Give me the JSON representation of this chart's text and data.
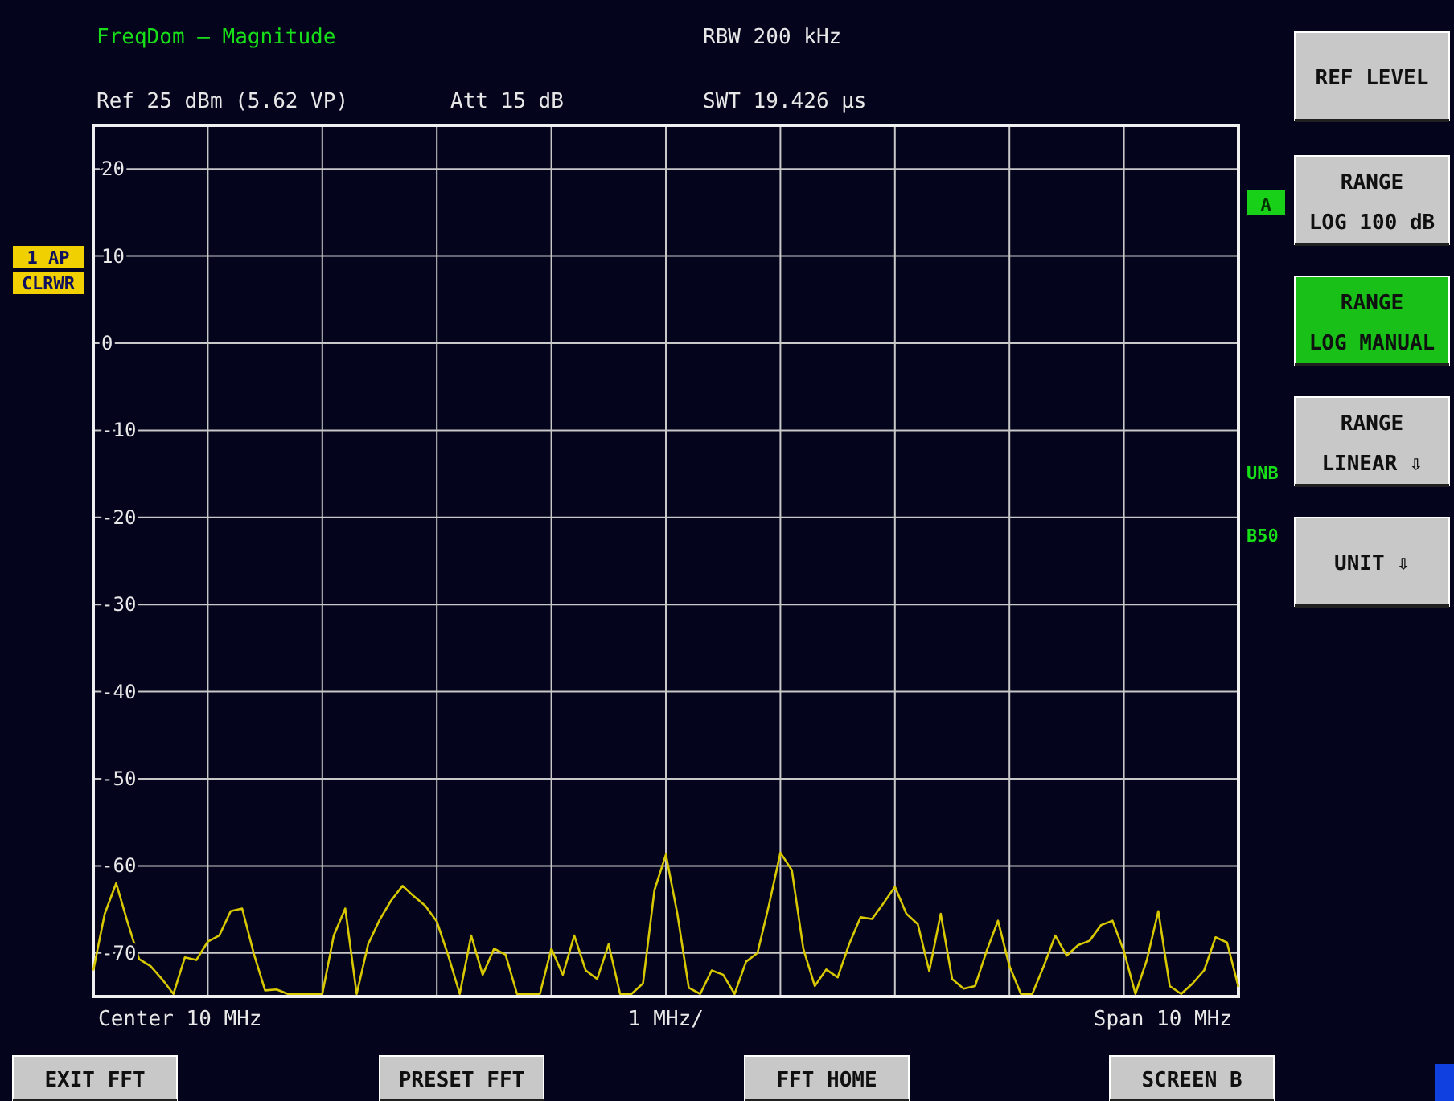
{
  "chart_data": {
    "type": "line",
    "title": "FreqDom – Magnitude",
    "categories": [
      null,
      null,
      null,
      null,
      null,
      null,
      null,
      null,
      null,
      null,
      null,
      null,
      null,
      null,
      null,
      null,
      null,
      null,
      null,
      null,
      null,
      null,
      null,
      null,
      null,
      null,
      null,
      null,
      null,
      null,
      null,
      null,
      null,
      null,
      null,
      null,
      null,
      null,
      null,
      null,
      null,
      null,
      null,
      null,
      null,
      null,
      null,
      null,
      null,
      null,
      null,
      null,
      null,
      null,
      null,
      null,
      null,
      null,
      null,
      null,
      null,
      null,
      null,
      null,
      null,
      null,
      null,
      null,
      null,
      null,
      null,
      null,
      null,
      null,
      null,
      null,
      null,
      null,
      null,
      null,
      null,
      null,
      null,
      null,
      null,
      null,
      null,
      null,
      null,
      null,
      null,
      null,
      null,
      null,
      null,
      null,
      null,
      null,
      null,
      null,
      null
    ],
    "ylim": [
      -75,
      25
    ],
    "yticks": [
      20,
      10,
      0,
      -10,
      -20,
      -30,
      -40,
      -50,
      -60,
      -70
    ],
    "grid": true,
    "series": [
      {
        "color": "#d8c800",
        "values": [
          -72,
          -65.5,
          -62,
          -66.5,
          -70.7,
          -71.5,
          -73,
          -74.7,
          -70.5,
          -70.8,
          -68.7,
          -68,
          -65.2,
          -64.9,
          -70,
          -74.3,
          -74.2,
          -74.7,
          -74.7,
          -74.7,
          -74.7,
          -68,
          -64.9,
          -74.7,
          -69,
          -66.2,
          -64,
          -62.3,
          -63.5,
          -64.6,
          -66.4,
          -70.3,
          -74.7,
          -68,
          -72.5,
          -69.5,
          -70.2,
          -74.7,
          -74.7,
          -74.7,
          -69.5,
          -72.5,
          -68,
          -72,
          -73,
          -69,
          -74.7,
          -74.7,
          -73.5,
          -62.8,
          -58.7,
          -65.5,
          -74,
          -74.7,
          -72,
          -72.5,
          -74.7,
          -71,
          -70,
          -64.5,
          -58.5,
          -60.5,
          -69.5,
          -73.8,
          -71.9,
          -72.8,
          -69,
          -65.9,
          -66.1,
          -64.3,
          -62.4,
          -65.5,
          -66.7,
          -72.1,
          -65.5,
          -73,
          -74.1,
          -73.8,
          -69.8,
          -66.3,
          -71.5,
          -74.7,
          -74.7,
          -71.5,
          -68,
          -70.3,
          -69.1,
          -68.6,
          -66.8,
          -66.3,
          -69.8,
          -74.7,
          -70.8,
          -65.2,
          -73.8,
          -74.7,
          -73.5,
          -72,
          -68.2,
          -68.8,
          -73.9
        ]
      }
    ],
    "annotations": [
      "RBW 200 kHz",
      "Ref 25 dBm (5.62 VP)",
      "Att 15 dB",
      "SWT 19.426 µs",
      "1 AP",
      "CLRWR",
      "A",
      "UNB",
      "B50",
      "REF LEVEL",
      "RANGE LOG 100 dB",
      "RANGE LOG MANUAL",
      "RANGE LINEAR ⇩",
      "UNIT ⇩",
      "Center 10 MHz",
      "1 MHz/",
      "Span 10 MHz",
      "EXIT FFT",
      "PRESET FFT",
      "FFT HOME",
      "SCREEN B"
    ]
  }
}
